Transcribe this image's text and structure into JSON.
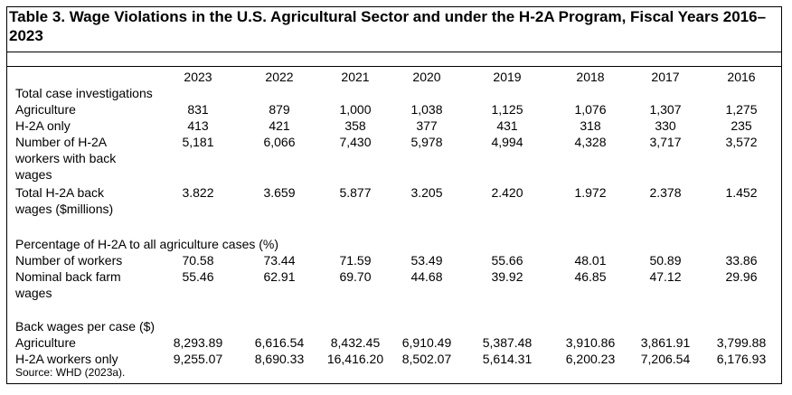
{
  "title": "Table 3. Wage Violations in the U.S. Agricultural Sector and under the H-2A Program, Fiscal Years 2016–2023",
  "years": [
    "2023",
    "2022",
    "2021",
    "2020",
    "2019",
    "2018",
    "2017",
    "2016"
  ],
  "sections": {
    "total_header": "Total case investigations",
    "pct_header": "Percentage of H-2A to all agriculture cases (%)",
    "bw_header": "Back wages per case ($)"
  },
  "rows": {
    "agriculture": {
      "label": "Agriculture",
      "values": [
        "831",
        "879",
        "1,000",
        "1,038",
        "1,125",
        "1,076",
        "1,307",
        "1,275"
      ]
    },
    "h2a_only": {
      "label": "H-2A only",
      "values": [
        "413",
        "421",
        "358",
        "377",
        "431",
        "318",
        "330",
        "235"
      ]
    },
    "h2a_workers_bw": {
      "label_lines": [
        "Number of H-2A",
        "workers with back",
        "wages"
      ],
      "values": [
        "5,181",
        "6,066",
        "7,430",
        "5,978",
        "4,994",
        "4,328",
        "3,717",
        "3,572"
      ]
    },
    "total_h2a_bw": {
      "label_lines": [
        "Total H-2A back",
        "wages ($millions)"
      ],
      "values": [
        "3.822",
        "3.659",
        "5.877",
        "3.205",
        "2.420",
        "1.972",
        "2.378",
        "1.452"
      ]
    },
    "num_workers": {
      "label": "Number of workers",
      "values": [
        "70.58",
        "73.44",
        "71.59",
        "53.49",
        "55.66",
        "48.01",
        "50.89",
        "33.86"
      ]
    },
    "nominal_bw": {
      "label_lines": [
        "Nominal back farm",
        "wages"
      ],
      "values": [
        "55.46",
        "62.91",
        "69.70",
        "44.68",
        "39.92",
        "46.85",
        "47.12",
        "29.96"
      ]
    },
    "bw_agriculture": {
      "label": "Agriculture",
      "values": [
        "8,293.89",
        "6,616.54",
        "8,432.45",
        "6,910.49",
        "5,387.48",
        "3,910.86",
        "3,861.91",
        "3,799.88"
      ]
    },
    "bw_h2a_workers": {
      "label": "H-2A workers only",
      "values": [
        "9,255.07",
        "8,690.33",
        "16,416.20",
        "8,502.07",
        "5,614.31",
        "6,200.23",
        "7,206.54",
        "6,176.93"
      ]
    }
  },
  "source": "Source: WHD (2023a)."
}
